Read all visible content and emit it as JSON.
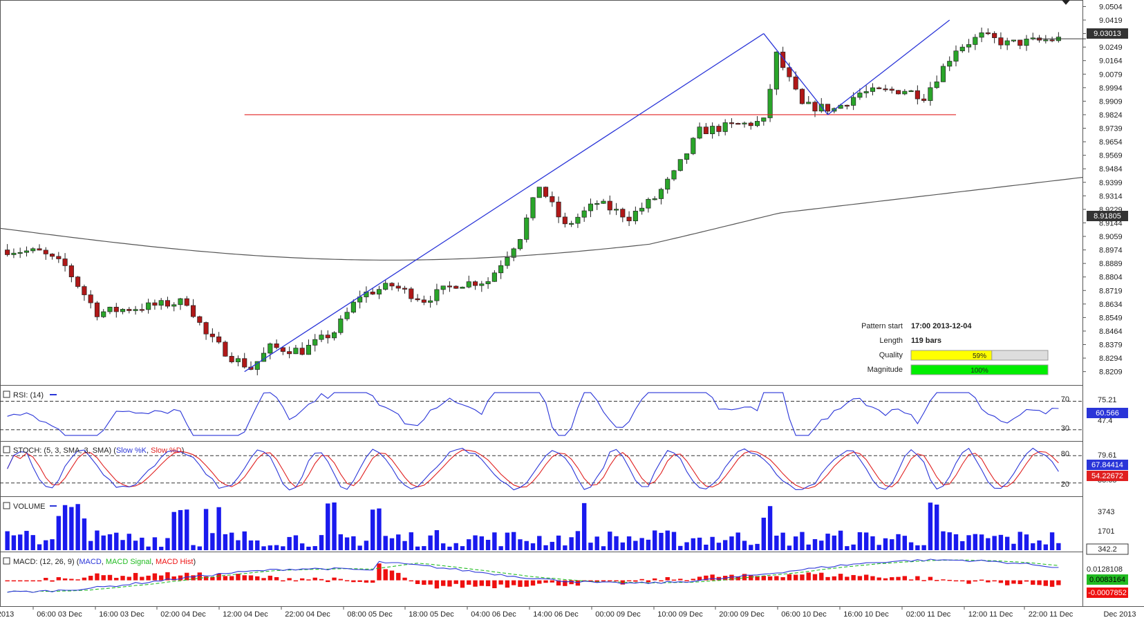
{
  "chart_data": {
    "type": "candlestick",
    "symbol_price_last": "9.03013",
    "price_axis": {
      "ticks": [
        "9.0504",
        "9.0419",
        "9.0334",
        "9.0249",
        "9.0164",
        "9.0079",
        "8.9994",
        "8.9909",
        "8.9824",
        "8.9739",
        "8.9654",
        "8.9569",
        "8.9484",
        "8.9399",
        "8.9314",
        "8.9229",
        "8.9144",
        "8.9059",
        "8.8974",
        "8.8889",
        "8.8804",
        "8.8719",
        "8.8634",
        "8.8549",
        "8.8464",
        "8.8379",
        "8.8294",
        "8.8209"
      ],
      "range": [
        8.8164,
        9.0519
      ]
    },
    "time_axis": {
      "ticks": [
        "2013",
        "06:00 03 Dec",
        "16:00 03 Dec",
        "02:00 04 Dec",
        "12:00 04 Dec",
        "22:00 04 Dec",
        "08:00 05 Dec",
        "18:00 05 Dec",
        "04:00 06 Dec",
        "14:00 06 Dec",
        "00:00 09 Dec",
        "10:00 09 Dec",
        "20:00 09 Dec",
        "06:00 10 Dec",
        "16:00 10 Dec",
        "02:00 11 Dec",
        "12:00 11 Dec",
        "22:00 11 Dec",
        "Dec 2013"
      ]
    },
    "ma_last": "8.91805",
    "support_level": 8.9824,
    "pattern_lines": [
      {
        "from": 8.8209,
        "to": 9.0334
      },
      {
        "from": 9.0334,
        "to": 8.9824
      },
      {
        "from": 8.9824,
        "to": 9.0419
      }
    ],
    "pattern_info": {
      "start_label": "Pattern start",
      "start_value": "17:00 2013-12-04",
      "length_label": "Length",
      "length_value": "119 bars",
      "quality_label": "Quality",
      "quality_value": "59%",
      "quality_fraction": 0.59,
      "magnitude_label": "Magnitude",
      "magnitude_value": "100%",
      "magnitude_fraction": 1.0
    },
    "rsi": {
      "legend_prefix": "RSI: (14)",
      "level_high": "70",
      "level_low": "30",
      "axis_ticks": [
        "75.21",
        "47.4"
      ],
      "last": "60.566"
    },
    "stoch": {
      "legend_prefix": "STOCH: (5, 3, SMA, 3, SMA)",
      "legend_slow_k": "Slow %K",
      "legend_slow_d": "Slow %D",
      "level_high": "80",
      "level_low": "20",
      "axis_ticks": [
        "79.61",
        "38.65"
      ],
      "last_k": "67.84414",
      "last_d": "54.22672"
    },
    "volume": {
      "legend": "VOLUME",
      "axis_ticks": [
        "3743",
        "1701"
      ],
      "last": "342.2"
    },
    "macd": {
      "legend_prefix": "MACD: (12, 26, 9)",
      "legend_macd": "MACD",
      "legend_signal": "MACD Signal",
      "legend_hist": "MACD Hist",
      "axis_ticks": [
        "0.0128108"
      ],
      "last_macd": "0.0083164",
      "last_hist": "-0.0007852"
    },
    "colors": {
      "bull": "#2aa52a",
      "bear": "#b01818",
      "pattern": "#2a35d8",
      "support": "#e02020",
      "ma": "#555555",
      "rsi": "#2a35d8",
      "stoch_k": "#2a35d8",
      "stoch_d": "#e02020",
      "volume": "#1a1aee",
      "macd": "#2a35d8",
      "macd_signal": "#22bb22",
      "macd_hist": "#ee1010"
    }
  }
}
